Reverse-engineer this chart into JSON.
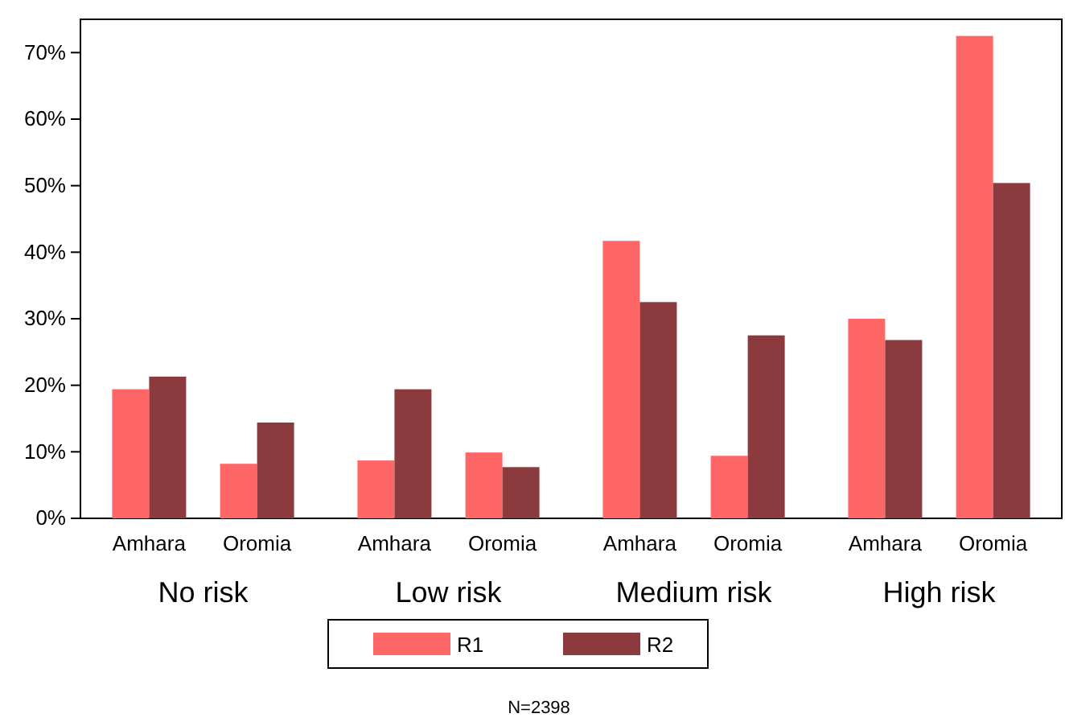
{
  "chart_data": {
    "type": "bar",
    "categories": [
      "Amhara",
      "Oromia",
      "Amhara",
      "Oromia",
      "Amhara",
      "Oromia",
      "Amhara",
      "Oromia"
    ],
    "series": [
      {
        "name": "R1",
        "color": "#ff6666",
        "values": [
          19.4,
          8.2,
          8.7,
          9.9,
          41.7,
          9.4,
          30.0,
          72.5
        ]
      },
      {
        "name": "R2",
        "color": "#8b3a3e",
        "values": [
          21.3,
          14.4,
          19.4,
          7.7,
          32.5,
          27.5,
          26.8,
          50.4
        ]
      }
    ],
    "ylim": [
      0,
      75
    ],
    "yticks": [
      {
        "value": 0,
        "label": "0%"
      },
      {
        "value": 10,
        "label": "10%"
      },
      {
        "value": 20,
        "label": "20%"
      },
      {
        "value": 30,
        "label": "30%"
      },
      {
        "value": 40,
        "label": "40%"
      },
      {
        "value": 50,
        "label": "50%"
      },
      {
        "value": 60,
        "label": "60%"
      },
      {
        "value": 70,
        "label": "70%"
      }
    ],
    "annotations": [
      "No risk",
      "Low risk",
      "Medium risk",
      "High risk",
      "N=2398"
    ],
    "grid": false,
    "legend": "bottom"
  }
}
